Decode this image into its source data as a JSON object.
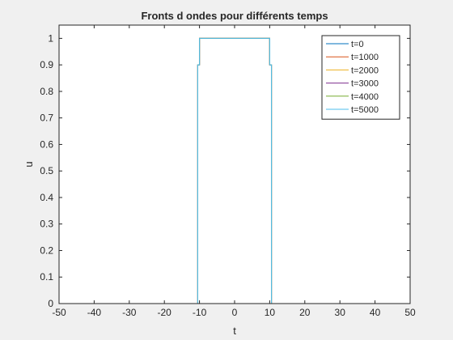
{
  "chart_data": {
    "type": "line",
    "title": "Fronts d ondes pour différents temps",
    "xlabel": "t",
    "ylabel": "u",
    "xlim": [
      -50,
      50
    ],
    "ylim": [
      0,
      1.05
    ],
    "xticks": [
      -50,
      -40,
      -30,
      -20,
      -10,
      0,
      10,
      20,
      30,
      40,
      50
    ],
    "yticks": [
      0,
      0.1,
      0.2,
      0.3,
      0.4,
      0.5,
      0.6,
      0.7,
      0.8,
      0.9,
      1
    ],
    "grid": false,
    "legend_position": "top-right",
    "colors": {
      "axes_background": "#ffffff",
      "figure_background": "#f0f0f0",
      "axis": "#262626"
    },
    "series": [
      {
        "name": "t=0",
        "color": "#0072bd",
        "x": [
          -50,
          -10.5,
          -10.5,
          -10,
          -10,
          10,
          10,
          10.5,
          10.5,
          50
        ],
        "y": [
          0,
          0,
          0.9,
          0.9,
          1,
          1,
          0.9,
          0.9,
          0,
          0
        ]
      },
      {
        "name": "t=1000",
        "color": "#d95319",
        "x": [
          -50,
          -10.5,
          -10.5,
          -10,
          -10,
          10,
          10,
          10.5,
          10.5,
          50
        ],
        "y": [
          0,
          0,
          0.9,
          0.9,
          1,
          1,
          0.9,
          0.9,
          0,
          0
        ]
      },
      {
        "name": "t=2000",
        "color": "#edb120",
        "x": [
          -50,
          -10.5,
          -10.5,
          -10,
          -10,
          10,
          10,
          10.5,
          10.5,
          50
        ],
        "y": [
          0,
          0,
          0.9,
          0.9,
          1,
          1,
          0.9,
          0.9,
          0,
          0
        ]
      },
      {
        "name": "t=3000",
        "color": "#7e2f8e",
        "x": [
          -50,
          -10.5,
          -10.5,
          -10,
          -10,
          10,
          10,
          10.5,
          10.5,
          50
        ],
        "y": [
          0,
          0,
          0.9,
          0.9,
          1,
          1,
          0.9,
          0.9,
          0,
          0
        ]
      },
      {
        "name": "t=4000",
        "color": "#77ac30",
        "x": [
          -50,
          -10.5,
          -10.5,
          -10,
          -10,
          10,
          10,
          10.5,
          10.5,
          50
        ],
        "y": [
          0,
          0,
          0.9,
          0.9,
          1,
          1,
          0.9,
          0.9,
          0,
          0
        ]
      },
      {
        "name": "t=5000",
        "color": "#4dbeee",
        "x": [
          -50,
          -10.5,
          -10.5,
          -10,
          -10,
          10,
          10,
          10.5,
          10.5,
          50
        ],
        "y": [
          0,
          0,
          0.9,
          0.9,
          1,
          1,
          0.9,
          0.9,
          0,
          0
        ]
      }
    ]
  }
}
